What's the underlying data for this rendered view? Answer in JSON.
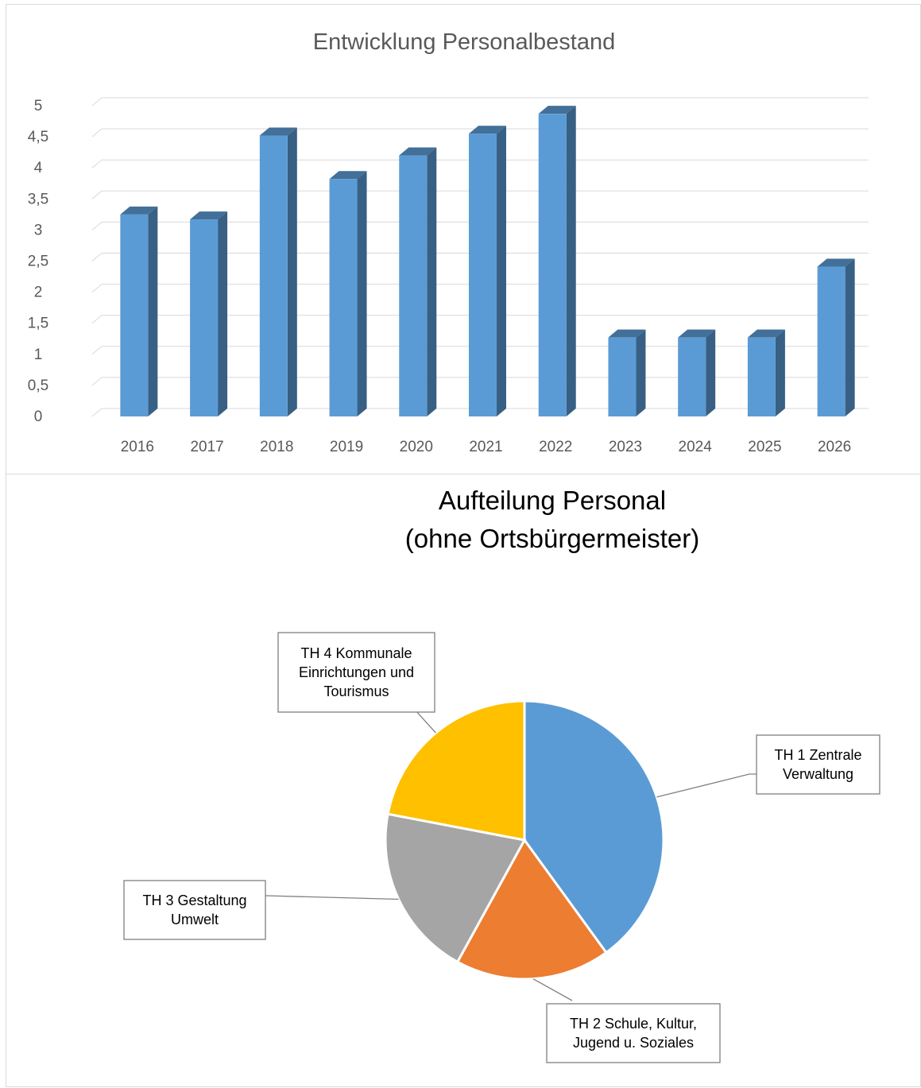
{
  "chart_data": [
    {
      "type": "bar",
      "title": "Entwicklung Personalbestand",
      "categories": [
        "2016",
        "2017",
        "2018",
        "2019",
        "2020",
        "2021",
        "2022",
        "2023",
        "2024",
        "2025",
        "2026"
      ],
      "values": [
        3.25,
        3.17,
        4.52,
        3.82,
        4.2,
        4.55,
        4.87,
        1.27,
        1.27,
        1.27,
        2.41
      ],
      "yticks": [
        "0",
        "0,5",
        "1",
        "1,5",
        "2",
        "2,5",
        "3",
        "3,5",
        "4",
        "4,5",
        "5"
      ],
      "ylim": [
        0,
        5
      ],
      "xlabel": "",
      "ylabel": "",
      "grid": true,
      "style": "3d-column",
      "color": "#5B9BD5"
    },
    {
      "type": "pie",
      "title": [
        "Aufteilung Personal",
        "(ohne Ortsbürgermeister)"
      ],
      "slices": [
        {
          "label": [
            "TH 1 Zentrale",
            "Verwaltung"
          ],
          "value": 40,
          "color": "#5B9BD5"
        },
        {
          "label": [
            "TH 2 Schule, Kultur,",
            "Jugend u. Soziales"
          ],
          "value": 18,
          "color": "#ED7D31"
        },
        {
          "label": [
            "TH 3 Gestaltung",
            "Umwelt"
          ],
          "value": 20,
          "color": "#A5A5A5"
        },
        {
          "label": [
            "TH 4 Kommunale",
            "Einrichtungen und",
            "Tourismus"
          ],
          "value": 22,
          "color": "#FFC000"
        }
      ]
    }
  ]
}
